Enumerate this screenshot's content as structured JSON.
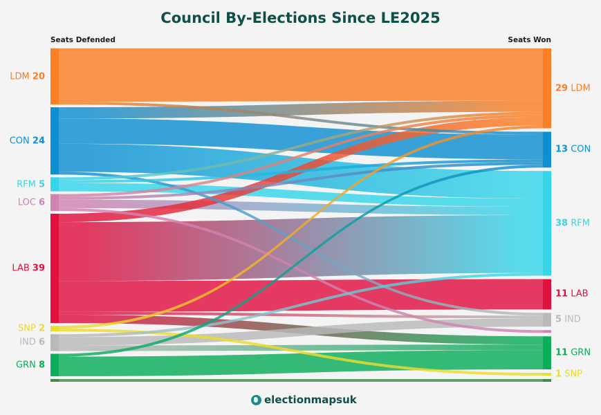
{
  "title": "Council By-Elections Since LE2025",
  "left_header": "Seats Defended",
  "right_header": "Seats Won",
  "brand": "electionmapsuk",
  "parties": {
    "LDM": {
      "color": "#fb7f25"
    },
    "CON": {
      "color": "#0e8fd2"
    },
    "RFM": {
      "color": "#35d6ea"
    },
    "LOC": {
      "color": "#d083b0"
    },
    "LAB": {
      "color": "#e0103f"
    },
    "SNP": {
      "color": "#ecdc2c"
    },
    "IND": {
      "color": "#b9b9b9"
    },
    "GRN": {
      "color": "#0bad5b"
    },
    "OTH": {
      "color": "#3f8c4c"
    }
  },
  "left_nodes": [
    {
      "id": "LDM",
      "name": "LDM",
      "value": "20"
    },
    {
      "id": "CON",
      "name": "CON",
      "value": "24"
    },
    {
      "id": "RFM",
      "name": "RFM",
      "value": "5"
    },
    {
      "id": "LOC",
      "name": "LOC",
      "value": "6"
    },
    {
      "id": "LAB",
      "name": "LAB",
      "value": "39"
    },
    {
      "id": "SNP",
      "name": "SNP",
      "value": "2"
    },
    {
      "id": "IND",
      "name": "IND",
      "value": "6"
    },
    {
      "id": "GRN",
      "name": "GRN",
      "value": "8"
    },
    {
      "id": "OTH",
      "name": "",
      "value": ""
    }
  ],
  "right_nodes": [
    {
      "id": "LDM",
      "name": "LDM",
      "value": "29"
    },
    {
      "id": "CON",
      "name": "CON",
      "value": "13"
    },
    {
      "id": "RFM",
      "name": "RFM",
      "value": "38"
    },
    {
      "id": "LAB",
      "name": "LAB",
      "value": "11"
    },
    {
      "id": "IND",
      "name": "IND",
      "value": "5"
    },
    {
      "id": "LOC",
      "name": "",
      "value": ""
    },
    {
      "id": "GRN",
      "name": "GRN",
      "value": "11"
    },
    {
      "id": "SNP",
      "name": "SNP",
      "value": "1"
    },
    {
      "id": "OTH",
      "name": "",
      "value": ""
    }
  ],
  "flows": [
    {
      "from": "LDM",
      "to": "LDM",
      "value": 19
    },
    {
      "from": "LDM",
      "to": "CON",
      "value": 1
    },
    {
      "from": "CON",
      "to": "LDM",
      "value": 4
    },
    {
      "from": "CON",
      "to": "CON",
      "value": 9
    },
    {
      "from": "CON",
      "to": "RFM",
      "value": 10
    },
    {
      "from": "CON",
      "to": "IND",
      "value": 1
    },
    {
      "from": "RFM",
      "to": "LDM",
      "value": 1
    },
    {
      "from": "RFM",
      "to": "CON",
      "value": 1
    },
    {
      "from": "RFM",
      "to": "RFM",
      "value": 3
    },
    {
      "from": "LOC",
      "to": "LDM",
      "value": 1
    },
    {
      "from": "LOC",
      "to": "CON",
      "value": 1
    },
    {
      "from": "LOC",
      "to": "RFM",
      "value": 3
    },
    {
      "from": "LOC",
      "to": "LOC",
      "value": 1
    },
    {
      "from": "LAB",
      "to": "LDM",
      "value": 3
    },
    {
      "from": "LAB",
      "to": "RFM",
      "value": 21
    },
    {
      "from": "LAB",
      "to": "LAB",
      "value": 11
    },
    {
      "from": "LAB",
      "to": "IND",
      "value": 1
    },
    {
      "from": "LAB",
      "to": "GRN",
      "value": 3
    },
    {
      "from": "SNP",
      "to": "LDM",
      "value": 1
    },
    {
      "from": "SNP",
      "to": "SNP",
      "value": 1
    },
    {
      "from": "IND",
      "to": "RFM",
      "value": 1
    },
    {
      "from": "IND",
      "to": "IND",
      "value": 3
    },
    {
      "from": "IND",
      "to": "GRN",
      "value": 2
    },
    {
      "from": "GRN",
      "to": "CON",
      "value": 1
    },
    {
      "from": "GRN",
      "to": "GRN",
      "value": 7
    },
    {
      "from": "OTH",
      "to": "OTH",
      "value": 1
    }
  ]
}
